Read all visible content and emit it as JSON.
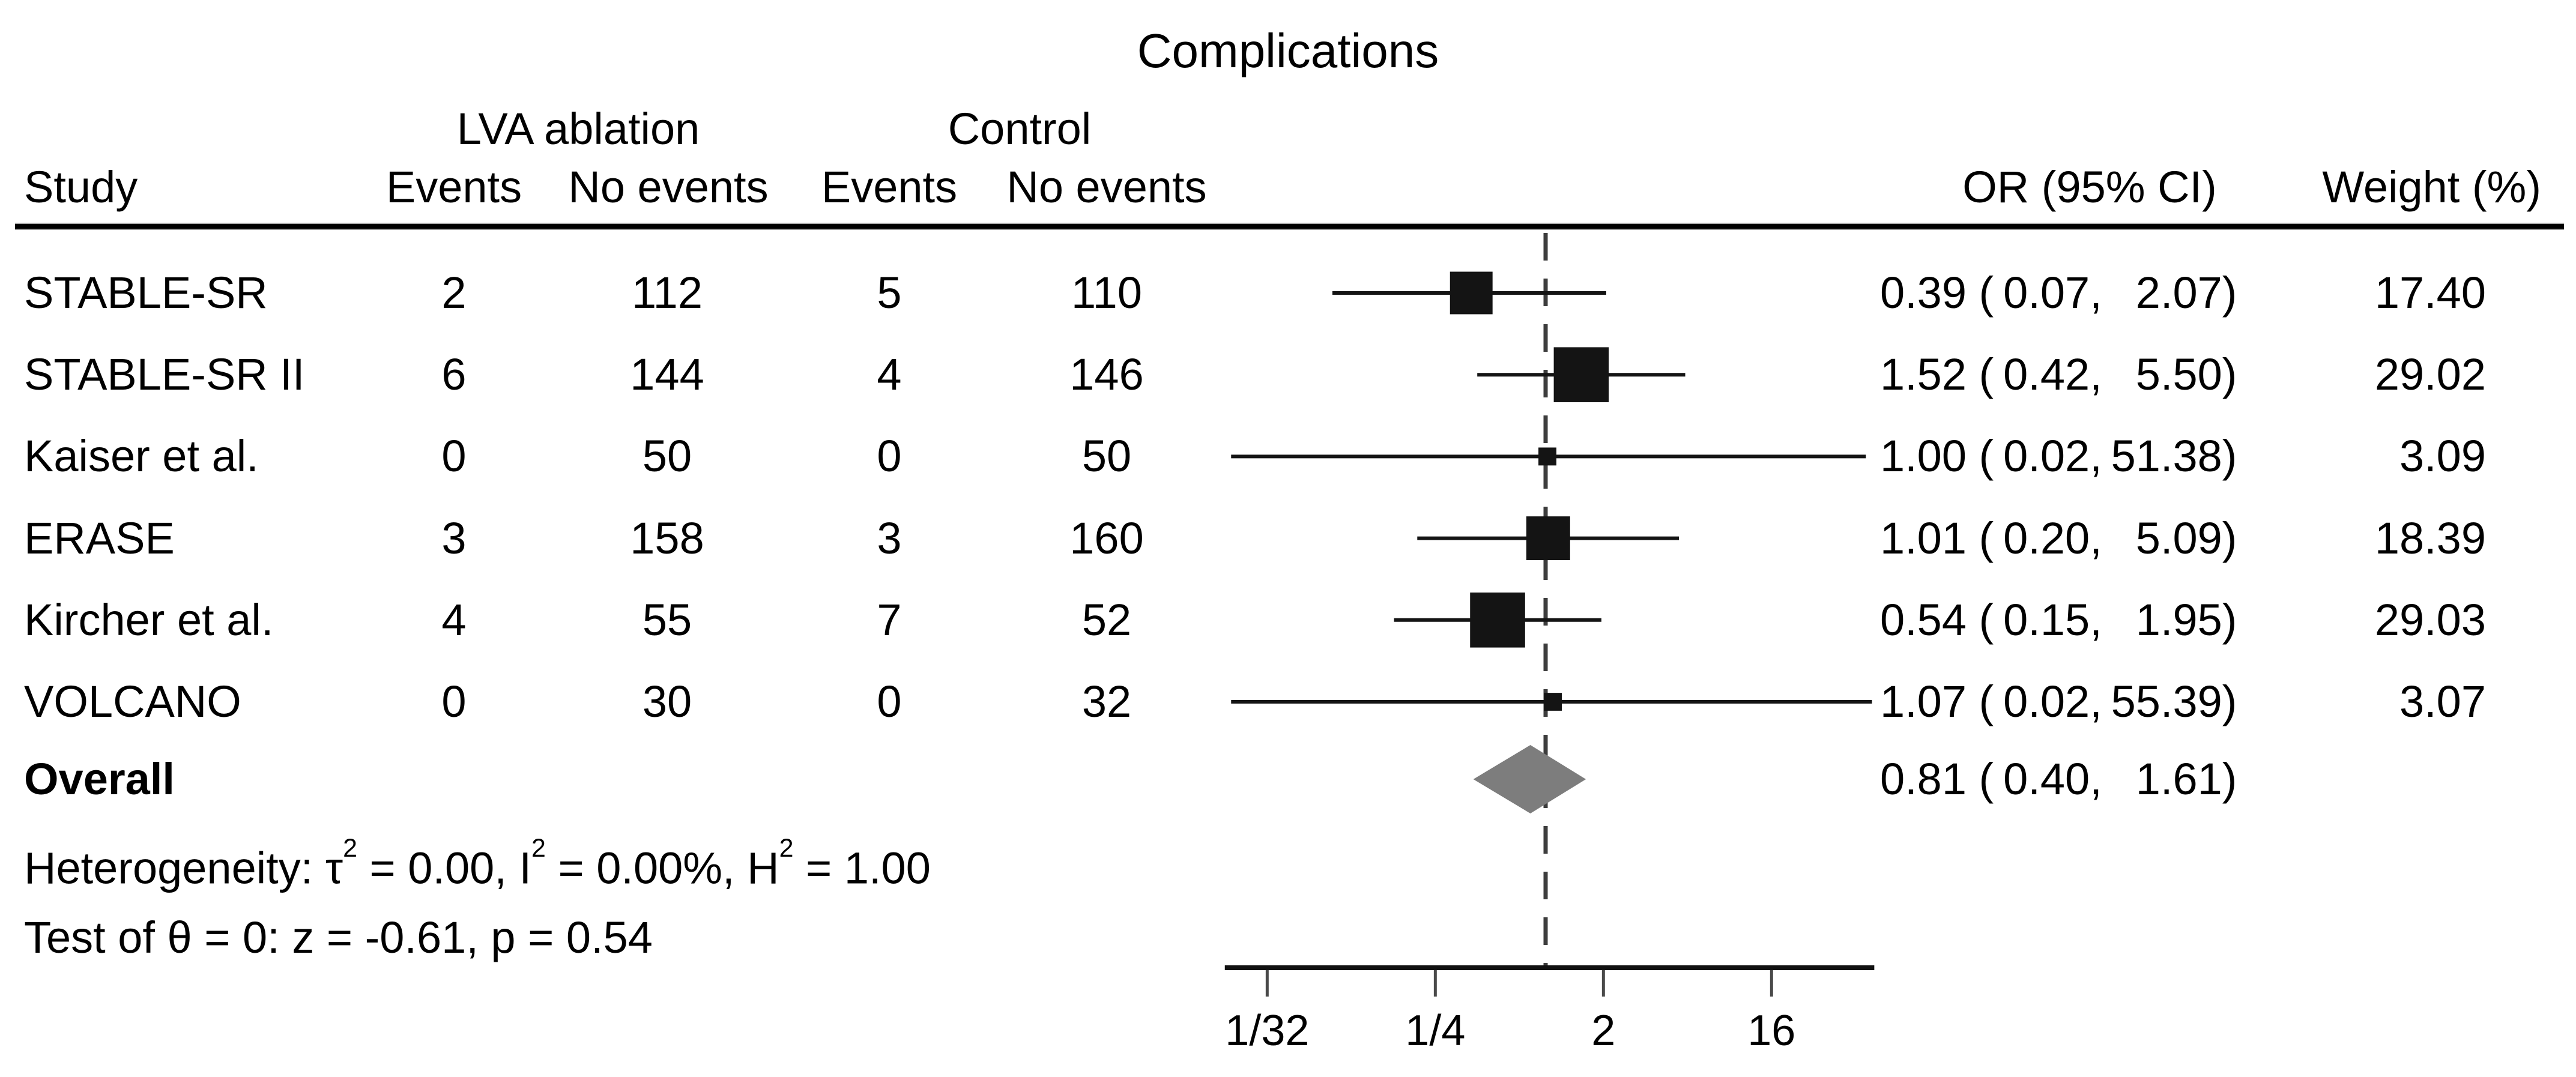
{
  "title": "Complications",
  "header": {
    "study": "Study",
    "treatment_group": "LVA ablation",
    "control_group": "Control",
    "events": "Events",
    "no_events": "No events",
    "or_ci": "OR (95% CI)",
    "weight": "Weight (%)"
  },
  "overall": {
    "label": "Overall",
    "or_text": "0.81",
    "ci_low_text": "0.40",
    "ci_high_text": "1.61"
  },
  "footnotes": {
    "heterogeneity": {
      "part1": "Heterogeneity: τ",
      "sup1": "2",
      "part2": " = 0.00, I",
      "sup2": "2",
      "part3": " = 0.00%, H",
      "sup3": "2",
      "part4": " = 1.00"
    },
    "test": "Test of θ = 0: z = -0.61, p = 0.54"
  },
  "chart_data": {
    "type": "scatter",
    "variant": "forest-plot",
    "title": "Complications",
    "xlabel": "",
    "ylabel": "",
    "x_scale": "log2",
    "grid": false,
    "legend_position": "none",
    "null_line_value": 1,
    "axis_line_range": [
      0.0185,
      57.0
    ],
    "x_ticks": [
      {
        "label": "1/32",
        "value": 0.03125
      },
      {
        "label": "1/4",
        "value": 0.25
      },
      {
        "label": "2",
        "value": 2
      },
      {
        "label": "16",
        "value": 16
      }
    ],
    "columns": [
      "Study",
      "LVA ablation Events",
      "LVA ablation No events",
      "Control Events",
      "Control No events",
      "OR (95% CI)",
      "Weight (%)"
    ],
    "studies": [
      {
        "study": "STABLE-SR",
        "treat_events": "2",
        "treat_no_events": "112",
        "control_events": "5",
        "control_no_events": "110",
        "or": 0.39,
        "ci_low": 0.07,
        "ci_high": 2.07,
        "or_text": "0.39",
        "ci_low_text": "0.07",
        "ci_high_text": "2.07",
        "weight": 17.4,
        "weight_text": "17.40"
      },
      {
        "study": "STABLE-SR II",
        "treat_events": "6",
        "treat_no_events": "144",
        "control_events": "4",
        "control_no_events": "146",
        "or": 1.52,
        "ci_low": 0.42,
        "ci_high": 5.5,
        "or_text": "1.52",
        "ci_low_text": "0.42",
        "ci_high_text": "5.50",
        "weight": 29.02,
        "weight_text": "29.02"
      },
      {
        "study": "Kaiser et al.",
        "treat_events": "0",
        "treat_no_events": "50",
        "control_events": "0",
        "control_no_events": "50",
        "or": 1.0,
        "ci_low": 0.02,
        "ci_high": 51.38,
        "or_text": "1.00",
        "ci_low_text": "0.02",
        "ci_high_text": "51.38",
        "weight": 3.09,
        "weight_text": "3.09"
      },
      {
        "study": "ERASE",
        "treat_events": "3",
        "treat_no_events": "158",
        "control_events": "3",
        "control_no_events": "160",
        "or": 1.01,
        "ci_low": 0.2,
        "ci_high": 5.09,
        "or_text": "1.01",
        "ci_low_text": "0.20",
        "ci_high_text": "5.09",
        "weight": 18.39,
        "weight_text": "18.39"
      },
      {
        "study": "Kircher et al.",
        "treat_events": "4",
        "treat_no_events": "55",
        "control_events": "7",
        "control_no_events": "52",
        "or": 0.54,
        "ci_low": 0.15,
        "ci_high": 1.95,
        "or_text": "0.54",
        "ci_low_text": "0.15",
        "ci_high_text": "1.95",
        "weight": 29.03,
        "weight_text": "29.03"
      },
      {
        "study": "VOLCANO",
        "treat_events": "0",
        "treat_no_events": "30",
        "control_events": "0",
        "control_no_events": "32",
        "or": 1.07,
        "ci_low": 0.02,
        "ci_high": 55.39,
        "or_text": "1.07",
        "ci_low_text": "0.02",
        "ci_high_text": "55.39",
        "weight": 3.07,
        "weight_text": "3.07"
      }
    ],
    "overall": {
      "or": 0.81,
      "ci_low": 0.4,
      "ci_high": 1.61
    }
  },
  "colors": {
    "text": "#000000",
    "marker": "#141414",
    "ci_line": "#141414",
    "diamond": "#7d7d7d",
    "null_line": "#3d3d3d",
    "axis": "#111111",
    "tick": "#4a4a4a"
  }
}
